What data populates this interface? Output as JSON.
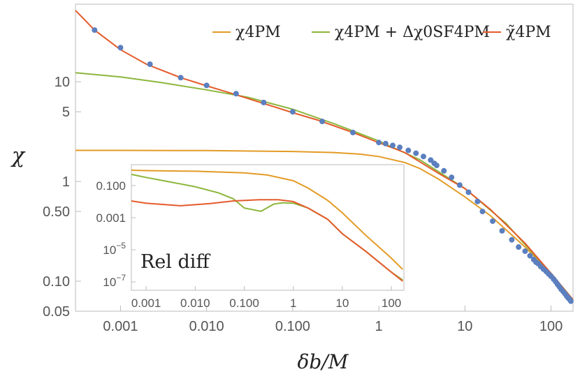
{
  "chart_data": {
    "type": "line",
    "xlabel": "δb/M",
    "ylabel": "χ",
    "xscale": "log",
    "yscale": "log",
    "xlim": [
      0.0003,
      180
    ],
    "ylim": [
      0.05,
      60
    ],
    "x_ticks": [
      {
        "value": 0.001,
        "label": "0.001"
      },
      {
        "value": 0.01,
        "label": "0.010"
      },
      {
        "value": 0.1,
        "label": "0.100"
      },
      {
        "value": 1,
        "label": "1"
      },
      {
        "value": 10,
        "label": "10"
      },
      {
        "value": 100,
        "label": "100"
      }
    ],
    "y_ticks": [
      {
        "value": 0.05,
        "label": "0.05"
      },
      {
        "value": 0.1,
        "label": "0.10"
      },
      {
        "value": 0.5,
        "label": "0.50"
      },
      {
        "value": 1,
        "label": "1"
      },
      {
        "value": 5,
        "label": "5"
      },
      {
        "value": 10,
        "label": "10"
      }
    ],
    "legend": {
      "position": "top-right",
      "entries": [
        {
          "label": "χ4PM",
          "color": "#e39b26"
        },
        {
          "label": "χ4PM + Δχ0SF4PM",
          "color": "#8db63c"
        },
        {
          "label": "χ̃4PM",
          "color": "#e45b2b"
        }
      ]
    },
    "series": [
      {
        "name": "χ4PM",
        "color": "#e39b26",
        "x": [
          0.0003,
          0.001,
          0.01,
          0.1,
          0.3,
          0.6,
          1,
          2,
          3,
          5,
          10,
          20,
          50,
          100,
          180
        ],
        "y": [
          2.05,
          2.05,
          2.04,
          2.0,
          1.95,
          1.88,
          1.78,
          1.55,
          1.35,
          1.05,
          0.7,
          0.45,
          0.22,
          0.12,
          0.065
        ]
      },
      {
        "name": "χ4PM + Δχ0SF4PM",
        "color": "#8db63c",
        "x": [
          0.0003,
          0.001,
          0.003,
          0.01,
          0.03,
          0.1,
          0.3,
          1,
          3,
          10,
          30,
          100,
          180
        ],
        "y": [
          12.3,
          11.2,
          9.8,
          8.3,
          7.0,
          5.3,
          3.8,
          2.55,
          1.65,
          0.85,
          0.38,
          0.12,
          0.065
        ]
      },
      {
        "name": "χ̃4PM",
        "color": "#e45b2b",
        "x": [
          0.0003,
          0.0005,
          0.001,
          0.002,
          0.005,
          0.01,
          0.02,
          0.04,
          0.1,
          0.2,
          0.5,
          1,
          2,
          5,
          10,
          20,
          50,
          100,
          180
        ],
        "y": [
          52,
          33,
          21,
          15,
          11,
          9.1,
          7.6,
          6.3,
          4.9,
          4.1,
          3.1,
          2.45,
          1.95,
          1.2,
          0.85,
          0.52,
          0.24,
          0.12,
          0.065
        ]
      },
      {
        "name": "χ̃4PM data points",
        "color": "#5b7fbf",
        "marker": "dot",
        "x": [
          0.0005,
          0.001,
          0.0022,
          0.005,
          0.01,
          0.022,
          0.046,
          0.1,
          0.22,
          0.5,
          1,
          1.2,
          1.45,
          1.75,
          2.2,
          2.7,
          3.3,
          4,
          4.4,
          4.7,
          5.7,
          7,
          8.7,
          11,
          14,
          16,
          21,
          27,
          35,
          42,
          50,
          57,
          63,
          67,
          71,
          76,
          82,
          88,
          94,
          100,
          107,
          113,
          119,
          125,
          131,
          138,
          145,
          152,
          158,
          164,
          170
        ],
        "y": [
          33,
          22,
          15,
          11,
          9.2,
          7.6,
          6.2,
          5.0,
          4.0,
          3.1,
          2.46,
          2.4,
          2.3,
          2.2,
          2.05,
          1.92,
          1.78,
          1.64,
          1.52,
          1.45,
          1.28,
          1.1,
          0.92,
          0.78,
          0.63,
          0.5,
          0.4,
          0.32,
          0.26,
          0.22,
          0.2,
          0.18,
          0.165,
          0.155,
          0.15,
          0.14,
          0.132,
          0.125,
          0.118,
          0.112,
          0.105,
          0.099,
          0.093,
          0.088,
          0.083,
          0.079,
          0.075,
          0.071,
          0.068,
          0.066,
          0.063
        ]
      }
    ],
    "inset": {
      "title": "Rel diff",
      "xscale": "log",
      "yscale": "log",
      "xlim": [
        0.0005,
        180
      ],
      "ylim": [
        3e-08,
        2
      ],
      "x_ticks": [
        {
          "value": 0.001,
          "label": "0.001"
        },
        {
          "value": 0.01,
          "label": "0.010"
        },
        {
          "value": 0.1,
          "label": "0.100"
        },
        {
          "value": 1,
          "label": "1"
        },
        {
          "value": 10,
          "label": "10"
        },
        {
          "value": 100,
          "label": "100"
        }
      ],
      "y_ticks": [
        {
          "value": 0.1,
          "label": "0.100"
        },
        {
          "value": 0.001,
          "label": "0.001"
        },
        {
          "value": 1e-05,
          "label": "10",
          "exp": "−5"
        },
        {
          "value": 1e-07,
          "label": "10",
          "exp": "−7"
        }
      ],
      "series": [
        {
          "name": "χ4PM",
          "color": "#e39b26",
          "x": [
            0.0005,
            0.001,
            0.01,
            0.1,
            0.3,
            1,
            2,
            5,
            10,
            30,
            100,
            170
          ],
          "y": [
            0.9,
            0.85,
            0.78,
            0.62,
            0.45,
            0.2,
            0.07,
            0.012,
            0.002,
            8e-05,
            3e-06,
            6e-07
          ]
        },
        {
          "name": "χ4PM + Δχ0SF4PM",
          "color": "#8db63c",
          "x": [
            0.0005,
            0.001,
            0.003,
            0.01,
            0.03,
            0.06,
            0.1,
            0.22,
            0.4,
            0.6,
            1,
            2,
            5,
            10,
            30,
            100,
            170
          ],
          "y": [
            0.5,
            0.32,
            0.17,
            0.085,
            0.035,
            0.015,
            0.004,
            0.0025,
            0.007,
            0.0085,
            0.008,
            0.004,
            0.0008,
            0.0001,
            8e-06,
            4e-07,
            1.3e-07
          ]
        },
        {
          "name": "χ̃4PM",
          "color": "#e45b2b",
          "x": [
            0.0005,
            0.001,
            0.005,
            0.02,
            0.06,
            0.2,
            0.5,
            1,
            2,
            5,
            10,
            30,
            100,
            170
          ],
          "y": [
            0.011,
            0.008,
            0.0055,
            0.0075,
            0.011,
            0.013,
            0.013,
            0.01,
            0.004,
            0.0008,
            0.0001,
            8e-06,
            4e-07,
            1.1e-07
          ]
        }
      ]
    }
  }
}
